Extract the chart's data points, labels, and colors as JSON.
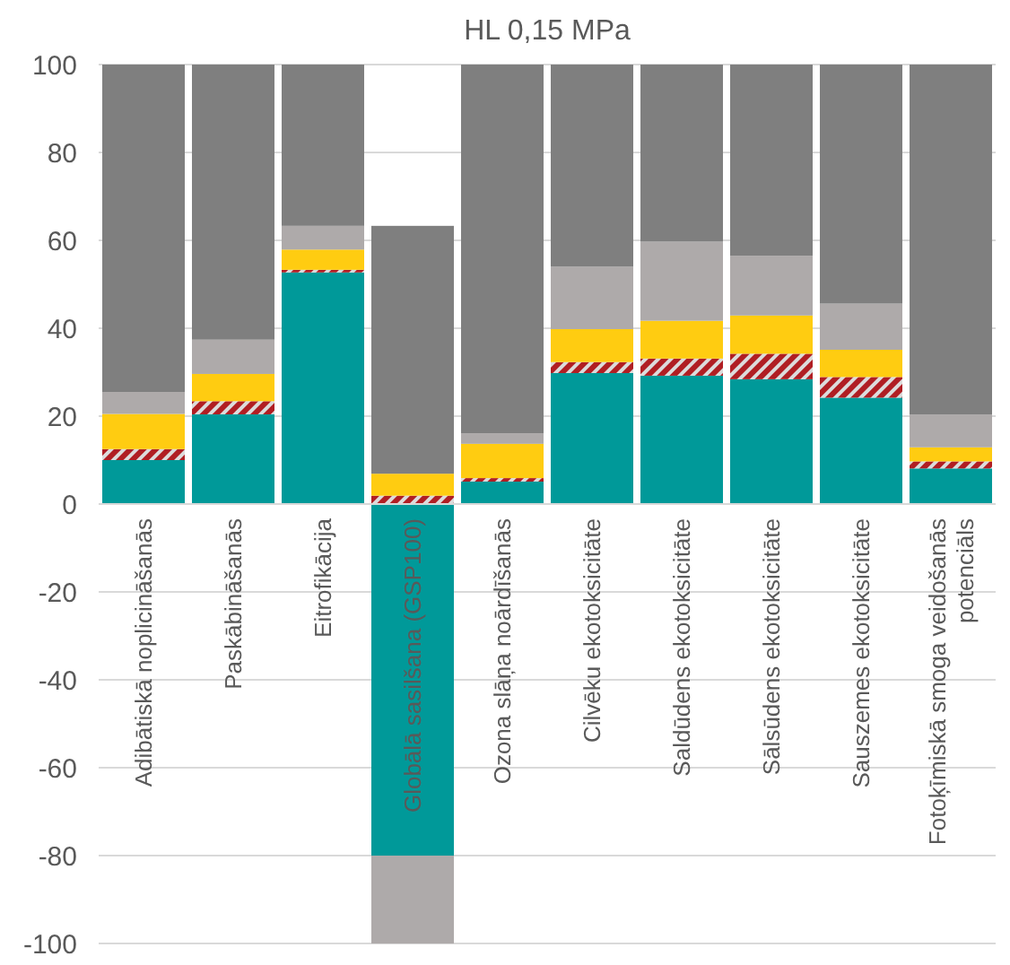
{
  "chart_data": {
    "type": "bar",
    "title": "HL 0,15 MPa",
    "stacked": true,
    "grid": "y",
    "categories": [
      "Adibātiskā noplicināšanās",
      "Paskābināšanās",
      "Eitrofikācija",
      "Globālā sasilšana (GSP100)",
      "Ozona slāņa noārdīšanās",
      "Cilvēku ekotoksicitāte",
      "Saldūdens ekotoksicitāte",
      "Sālsūdens ekotoksicitāte",
      "Sauszemes ekotoksicitāte",
      "Fotoķīmiskā smoga veidošanās potenciāls"
    ],
    "ylim": [
      -100,
      100
    ],
    "yticks": [
      -100,
      -80,
      -60,
      -40,
      -20,
      0,
      20,
      40,
      60,
      80,
      100
    ],
    "series": [
      {
        "color": "#009999",
        "values": [
          10,
          20.4,
          52.7,
          -80,
          5.1,
          29.8,
          29.2,
          28.4,
          24.2,
          8.1
        ]
      },
      {
        "color": "#b01e23",
        "values": [
          2.5,
          3,
          0.6,
          1.9,
          0.8,
          2.5,
          3.9,
          5.8,
          4.7,
          1.6
        ]
      },
      {
        "color": "#ffcc11",
        "values": [
          8,
          6.2,
          4.6,
          5,
          7.8,
          7.5,
          8.6,
          8.7,
          6.2,
          3.2
        ]
      },
      {
        "color": "#aeaaaa",
        "values": [
          5,
          7.8,
          5.4,
          -20,
          2.4,
          14.2,
          18,
          13.6,
          10.5,
          7.5
        ]
      },
      {
        "color": "#7f7f7f",
        "values": [
          74.5,
          62.6,
          36.7,
          56.4,
          83.9,
          46,
          40.3,
          43.5,
          54.4,
          79.6
        ]
      }
    ]
  }
}
